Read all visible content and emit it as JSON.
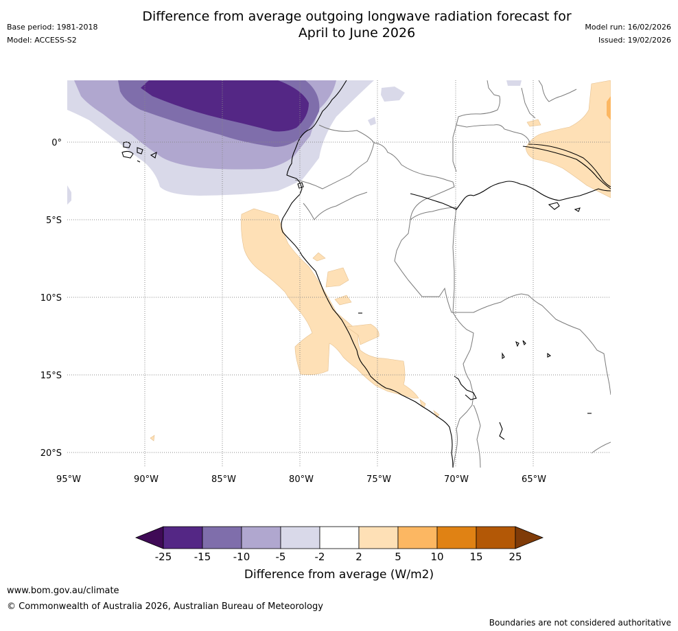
{
  "header": {
    "base_period": "Base period: 1981-2018",
    "model": "Model: ACCESS-S2",
    "title_line1": "Difference from average outgoing longwave radiation forecast for",
    "title_line2": "April to June 2026",
    "model_run": "Model run: 16/02/2026",
    "issued": "Issued: 19/02/2026"
  },
  "map": {
    "lat_labels": [
      "0°",
      "5°S",
      "10°S",
      "15°S",
      "20°S"
    ],
    "lon_labels": [
      "95°W",
      "90°W",
      "85°W",
      "80°W",
      "75°W",
      "70°W",
      "65°W"
    ]
  },
  "colorbar": {
    "labels": [
      "-25",
      "-15",
      "-10",
      "-5",
      "-2",
      "2",
      "5",
      "10",
      "15",
      "25"
    ],
    "colors": [
      "#3f0a56",
      "#542785",
      "#7f6eab",
      "#b0a7cf",
      "#d9d9e9",
      "#ffffff",
      "#fee0b6",
      "#fcb762",
      "#e08214",
      "#b35806",
      "#7f3b08"
    ],
    "title": "Difference from average (W/m2)"
  },
  "footer": {
    "website": "www.bom.gov.au/climate",
    "copyright": "© Commonwealth of Australia 2026, Australian Bureau of Meteorology",
    "disclaimer": "Boundaries are not considered authoritative"
  }
}
